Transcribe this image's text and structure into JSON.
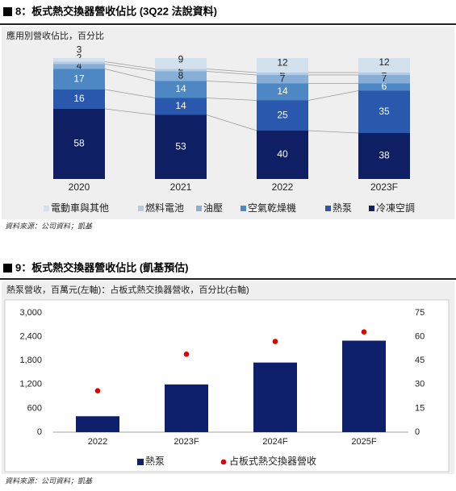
{
  "chart_data": [
    {
      "type": "stacked-bar",
      "title": "8：板式熱交換器營收佔比 (3Q22 法說資料)",
      "subtitle": "應用別營收佔比，百分比",
      "source": "資料來源：公司資料；凱基",
      "categories": [
        "2020",
        "2021",
        "2022",
        "2023F"
      ],
      "series": [
        {
          "name": "電動車與其他",
          "color": "#d3e0ee",
          "values": [
            3,
            9,
            12,
            12
          ]
        },
        {
          "name": "燃料電池",
          "color": "#b3cbe4",
          "values": [
            2,
            2,
            2,
            2
          ]
        },
        {
          "name": "油壓",
          "color": "#86aed6",
          "values": [
            4,
            8,
            7,
            7
          ]
        },
        {
          "name": "空氣乾燥機",
          "color": "#4d88c4",
          "values": [
            17,
            14,
            14,
            6
          ]
        },
        {
          "name": "熱泵",
          "color": "#2958ad",
          "values": [
            16,
            14,
            25,
            35
          ]
        },
        {
          "name": "冷凍空調",
          "color": "#0e2063",
          "values": [
            58,
            53,
            40,
            38
          ]
        }
      ]
    },
    {
      "type": "bar",
      "title": "9：板式熱交換器營收佔比 (凱基預估)",
      "subtitle": "熱泵營收，百萬元(左軸)：占板式熱交換器營收，百分比(右軸)",
      "source": "資料來源：公司資料；凱基",
      "categories": [
        "2022",
        "2023F",
        "2024F",
        "2025F"
      ],
      "series": [
        {
          "name": "熱泵",
          "color": "#0e1f6b",
          "values": [
            400,
            1200,
            1750,
            2300
          ]
        },
        {
          "name": "占板式熱交換器營收",
          "color": "#e00000",
          "type": "scatter",
          "axis": "y2",
          "values": [
            26,
            49,
            57,
            63
          ]
        }
      ],
      "ylim": [
        0,
        3000
      ],
      "yticks": [
        0,
        600,
        {
          "value": 1200,
          "label": "1,200"
        },
        {
          "value": 1800,
          "label": "1,800"
        },
        {
          "value": 2400,
          "label": "2,400"
        },
        {
          "value": 3000,
          "label": "3,000"
        }
      ],
      "y2lim": [
        0,
        75
      ],
      "y2ticks": [
        0,
        15,
        30,
        45,
        60,
        75
      ]
    }
  ]
}
